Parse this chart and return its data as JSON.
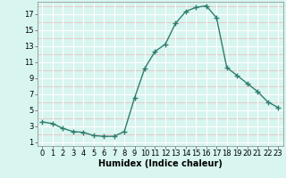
{
  "x": [
    0,
    1,
    2,
    3,
    4,
    5,
    6,
    7,
    8,
    9,
    10,
    11,
    12,
    13,
    14,
    15,
    16,
    17,
    18,
    19,
    20,
    21,
    22,
    23
  ],
  "y": [
    3.5,
    3.3,
    2.7,
    2.3,
    2.2,
    1.8,
    1.7,
    1.7,
    2.3,
    6.5,
    10.2,
    12.3,
    13.2,
    15.8,
    17.3,
    17.8,
    18.0,
    16.5,
    10.3,
    9.3,
    8.3,
    7.3,
    6.0,
    5.3
  ],
  "line_color": "#2e7d6e",
  "marker": "+",
  "marker_size": 4,
  "bg_color": "#d8f5f0",
  "grid_major_color": "#ffffff",
  "grid_minor_color": "#e8b8b8",
  "xlabel": "Humidex (Indice chaleur)",
  "xlim": [
    -0.5,
    23.5
  ],
  "ylim": [
    0.5,
    18.5
  ],
  "xticks": [
    0,
    1,
    2,
    3,
    4,
    5,
    6,
    7,
    8,
    9,
    10,
    11,
    12,
    13,
    14,
    15,
    16,
    17,
    18,
    19,
    20,
    21,
    22,
    23
  ],
  "yticks": [
    1,
    3,
    5,
    7,
    9,
    11,
    13,
    15,
    17
  ],
  "label_fontsize": 7,
  "tick_fontsize": 6
}
